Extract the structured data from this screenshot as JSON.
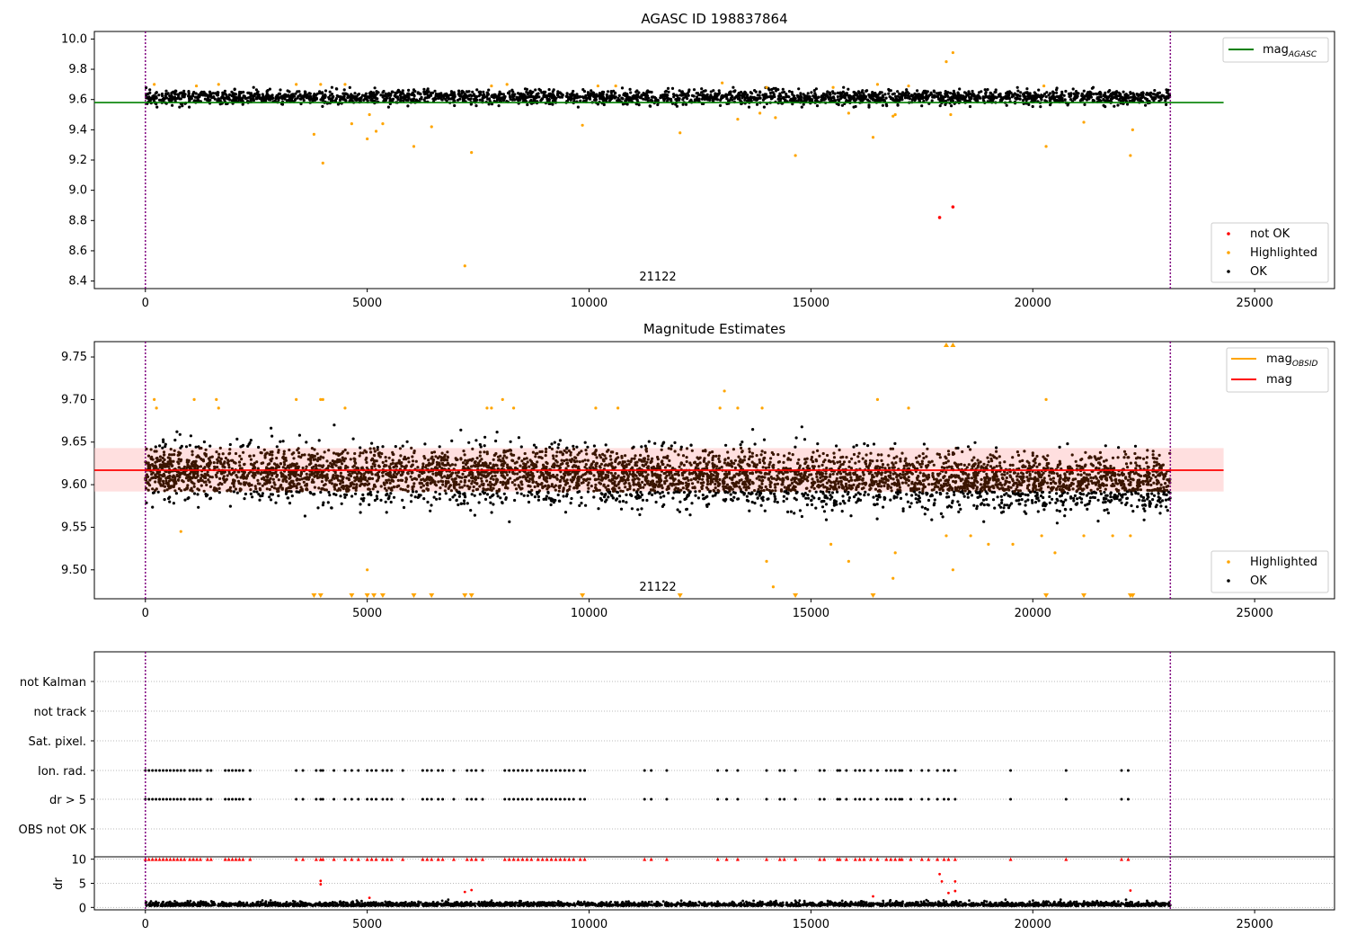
{
  "chart_data": [
    {
      "type": "scatter",
      "title": "AGASC ID 198837864",
      "ylim": [
        8.35,
        10.05
      ],
      "xlim": [
        -1150,
        26800
      ],
      "xticks": [
        0,
        5000,
        10000,
        15000,
        20000,
        25000
      ],
      "yticks": [
        8.4,
        8.6,
        8.8,
        9.0,
        9.2,
        9.4,
        9.6,
        9.8,
        10.0
      ],
      "annotation": "21122",
      "vlines": [
        0,
        23100
      ],
      "hline": {
        "label": "mag_AGASC",
        "value": 9.58,
        "color": "#008000"
      },
      "legend_top": "top-right",
      "legend_bottom": "lower-right",
      "series": [
        {
          "name": "not OK",
          "color": "#ff0000",
          "points": [
            [
              17900,
              8.82
            ],
            [
              18200,
              8.89
            ]
          ]
        },
        {
          "name": "Highlighted",
          "color": "#ffa500",
          "points": [
            [
              3800,
              9.37
            ],
            [
              4000,
              9.18
            ],
            [
              4650,
              9.44
            ],
            [
              5000,
              9.34
            ],
            [
              5050,
              9.5
            ],
            [
              5200,
              9.39
            ],
            [
              5350,
              9.44
            ],
            [
              6050,
              9.29
            ],
            [
              6450,
              9.42
            ],
            [
              7200,
              8.5
            ],
            [
              7350,
              9.25
            ],
            [
              9850,
              9.43
            ],
            [
              12050,
              9.38
            ],
            [
              13350,
              9.47
            ],
            [
              13850,
              9.51
            ],
            [
              14200,
              9.48
            ],
            [
              14650,
              9.23
            ],
            [
              15850,
              9.51
            ],
            [
              16400,
              9.35
            ],
            [
              16850,
              9.49
            ],
            [
              16900,
              9.5
            ],
            [
              18050,
              9.85
            ],
            [
              18200,
              9.91
            ],
            [
              18150,
              9.5
            ],
            [
              20300,
              9.29
            ],
            [
              21150,
              9.45
            ],
            [
              22200,
              9.23
            ],
            [
              22250,
              9.4
            ],
            [
              200,
              9.7
            ],
            [
              1150,
              9.69
            ],
            [
              1650,
              9.7
            ],
            [
              3400,
              9.7
            ],
            [
              3950,
              9.7
            ],
            [
              4500,
              9.7
            ],
            [
              7800,
              9.69
            ],
            [
              8150,
              9.7
            ],
            [
              10200,
              9.69
            ],
            [
              10600,
              9.69
            ],
            [
              13000,
              9.71
            ],
            [
              14000,
              9.68
            ],
            [
              15500,
              9.68
            ],
            [
              16500,
              9.7
            ],
            [
              17200,
              9.69
            ],
            [
              20250,
              9.69
            ]
          ]
        },
        {
          "name": "OK",
          "color": "#000000",
          "x_range": [
            0,
            23100
          ],
          "y_center": 9.615,
          "y_spread": 0.07
        }
      ]
    },
    {
      "type": "scatter",
      "title": "Magnitude Estimates",
      "ylim": [
        9.466,
        9.768
      ],
      "xlim": [
        -1150,
        26800
      ],
      "xticks": [
        0,
        5000,
        10000,
        15000,
        20000,
        25000
      ],
      "yticks": [
        9.5,
        9.55,
        9.6,
        9.65,
        9.7,
        9.75
      ],
      "annotation": "21122",
      "vlines": [
        0,
        23100
      ],
      "mag": 9.617,
      "band": [
        9.592,
        9.643
      ],
      "lines": [
        {
          "label": "mag_OBSID",
          "color": "#ffa500"
        },
        {
          "label": "mag",
          "color": "#ff0000"
        }
      ],
      "series": [
        {
          "name": "Highlighted",
          "color": "#ffa500",
          "points": [
            [
              200,
              9.7
            ],
            [
              250,
              9.69
            ],
            [
              1100,
              9.7
            ],
            [
              1600,
              9.7
            ],
            [
              1650,
              9.69
            ],
            [
              3400,
              9.7
            ],
            [
              3950,
              9.7
            ],
            [
              4000,
              9.7
            ],
            [
              4500,
              9.69
            ],
            [
              5000,
              9.5
            ],
            [
              7700,
              9.69
            ],
            [
              7800,
              9.69
            ],
            [
              8050,
              9.7
            ],
            [
              8300,
              9.69
            ],
            [
              10150,
              9.69
            ],
            [
              10650,
              9.69
            ],
            [
              12950,
              9.69
            ],
            [
              13050,
              9.71
            ],
            [
              13350,
              9.69
            ],
            [
              13900,
              9.69
            ],
            [
              14000,
              9.51
            ],
            [
              14150,
              9.48
            ],
            [
              15450,
              9.53
            ],
            [
              15850,
              9.51
            ],
            [
              16500,
              9.7
            ],
            [
              16850,
              9.49
            ],
            [
              16900,
              9.52
            ],
            [
              17200,
              9.69
            ],
            [
              18050,
              9.54
            ],
            [
              18200,
              9.5
            ],
            [
              18600,
              9.54
            ],
            [
              19000,
              9.53
            ],
            [
              19550,
              9.53
            ],
            [
              20200,
              9.54
            ],
            [
              20300,
              9.7
            ],
            [
              20500,
              9.52
            ],
            [
              21150,
              9.54
            ],
            [
              21800,
              9.54
            ],
            [
              22200,
              9.54
            ],
            [
              800,
              9.545
            ]
          ]
        },
        {
          "name": "OK",
          "color": "#000000",
          "x_range": [
            0,
            23100
          ],
          "y_center": 9.615,
          "y_spread": 0.05
        }
      ],
      "markers_low": [
        3800,
        3950,
        4650,
        5000,
        5150,
        5350,
        6050,
        6450,
        7200,
        7350,
        9850,
        12050,
        14650,
        16400,
        20300,
        21150,
        22200,
        22250
      ],
      "markers_high": [
        18050,
        18200
      ]
    },
    {
      "type": "scatter",
      "title": "",
      "xlim": [
        -1150,
        26800
      ],
      "xticks": [
        0,
        5000,
        10000,
        15000,
        20000,
        25000
      ],
      "vlines": [
        0,
        23100
      ],
      "categories": [
        "not Kalman",
        "not track",
        "Sat. pixel.",
        "Ion. rad.",
        "dr > 5",
        "OBS not OK"
      ],
      "flag_x": [
        0,
        80,
        160,
        240,
        320,
        400,
        480,
        560,
        640,
        720,
        800,
        880,
        1000,
        1080,
        1160,
        1240,
        1400,
        1480,
        1800,
        1880,
        1960,
        2040,
        2120,
        2200,
        2360,
        3400,
        3550,
        3850,
        3950,
        4000,
        4250,
        4500,
        4650,
        4800,
        5000,
        5100,
        5200,
        5350,
        5450,
        5550,
        5800,
        6250,
        6350,
        6450,
        6600,
        6700,
        6950,
        7250,
        7350,
        7450,
        7600,
        8100,
        8200,
        8300,
        8400,
        8500,
        8600,
        8700,
        8850,
        8950,
        9050,
        9150,
        9250,
        9350,
        9450,
        9550,
        9650,
        9800,
        9900,
        11250,
        11400,
        11750,
        12900,
        13100,
        13350,
        14000,
        14300,
        14400,
        14650,
        15200,
        15300,
        15600,
        15650,
        15800,
        16000,
        16100,
        16200,
        16350,
        16500,
        16700,
        16800,
        16900,
        17000,
        17050,
        17250,
        17500,
        17650,
        17850,
        18000,
        18100,
        18250,
        19500,
        20750,
        22000,
        22150
      ],
      "dr_axis": {
        "label": "dr",
        "ylim": [
          -0.5,
          10.5
        ],
        "yticks": [
          0,
          5,
          10
        ]
      },
      "dr_points": [
        [
          3950,
          5.5
        ],
        [
          3950,
          4.8
        ],
        [
          7200,
          3.2
        ],
        [
          7350,
          3.6
        ],
        [
          17900,
          6.9
        ],
        [
          17950,
          5.4
        ],
        [
          18100,
          3.0
        ],
        [
          18250,
          3.4
        ],
        [
          18250,
          5.4
        ],
        [
          22200,
          3.5
        ],
        [
          16400,
          2.3
        ],
        [
          5050,
          2.0
        ]
      ]
    }
  ]
}
